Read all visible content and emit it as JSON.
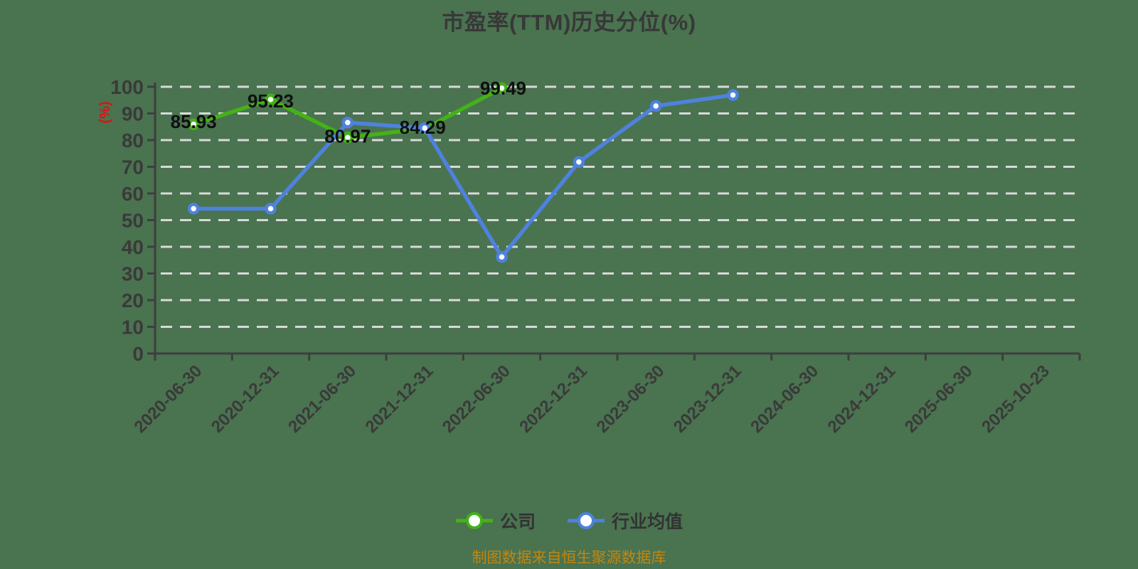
{
  "chart_data": {
    "type": "line",
    "title": "市盈率(TTM)历史分位(%)",
    "ylabel": "(%)",
    "xlabel": "",
    "source_note": "制图数据来自恒生聚源数据库",
    "ylim": [
      0,
      100
    ],
    "ytick_step": 10,
    "yticks": [
      0,
      10,
      20,
      30,
      40,
      50,
      60,
      70,
      80,
      90,
      100
    ],
    "grid": "horizontal-dashed",
    "legend_position": "bottom-center",
    "categories": [
      "2020-06-30",
      "2020-12-31",
      "2021-06-30",
      "2021-12-31",
      "2022-06-30",
      "2022-12-31",
      "2023-06-30",
      "2023-12-31",
      "2024-06-30",
      "2024-12-31",
      "2025-06-30",
      "2025-10-23"
    ],
    "series": [
      {
        "name": "公司",
        "color": "#43b216",
        "values": [
          85.93,
          95.23,
          80.97,
          84.29,
          99.49,
          null,
          null,
          null,
          null,
          null,
          null,
          null
        ],
        "show_labels": true,
        "label_offsets": [
          [
            0,
            -4
          ],
          [
            0,
            2
          ],
          [
            0,
            -2
          ],
          [
            -3,
            -2
          ],
          [
            2,
            0
          ]
        ]
      },
      {
        "name": "行业均值",
        "color": "#4e82dd",
        "values": [
          54.3,
          54.3,
          86.6,
          84.5,
          36.2,
          71.8,
          92.8,
          96.9,
          null,
          null,
          null,
          null
        ],
        "show_labels": false
      }
    ],
    "colors": {
      "background": "#4a7350",
      "grid": "#d9d9d9",
      "axis": "#3e3e3e",
      "axis_text": "#3a3a3a",
      "data_label": "#0f0f0f",
      "title": "#383838",
      "ylabel": "#e01111",
      "legend_text": "#333333",
      "source": "#c2860e"
    }
  }
}
